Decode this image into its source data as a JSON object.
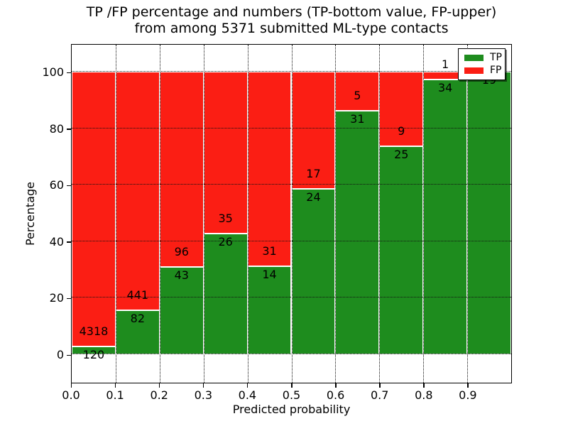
{
  "figure": {
    "title_line1": "TP /FP percentage and numbers (TP-bottom value, FP-upper)",
    "title_line2": "from among 5371 submitted ML-type contacts"
  },
  "chart_data": {
    "type": "bar",
    "stacking": "percent",
    "title": "TP /FP percentage and numbers (TP-bottom value, FP-upper) from among 5371 submitted ML-type contacts",
    "xlabel": "Predicted probability",
    "ylabel": "Percentage",
    "total_submitted": 5371,
    "bin_width": 0.1,
    "x_tick_labels": [
      "0.0",
      "0.1",
      "0.2",
      "0.3",
      "0.4",
      "0.5",
      "0.6",
      "0.7",
      "0.8",
      "0.9"
    ],
    "y_tick_labels": [
      "0",
      "20",
      "40",
      "60",
      "80",
      "100"
    ],
    "y_tick_values": [
      0,
      20,
      40,
      60,
      80,
      100
    ],
    "xlim": [
      0.0,
      1.0
    ],
    "ylim": [
      -10,
      110
    ],
    "grid": true,
    "legend_position": "upper right",
    "series": [
      {
        "name": "TP",
        "color": "#1e8c1e",
        "counts": [
          120,
          82,
          43,
          26,
          14,
          24,
          31,
          25,
          34,
          19
        ]
      },
      {
        "name": "FP",
        "color": "#fb1e14",
        "counts": [
          4318,
          441,
          96,
          35,
          31,
          17,
          5,
          9,
          1,
          null
        ]
      }
    ],
    "tp_percent": [
      2.7,
      15.68,
      30.94,
      42.62,
      31.11,
      58.54,
      86.11,
      73.53,
      97.14,
      100.0
    ]
  }
}
